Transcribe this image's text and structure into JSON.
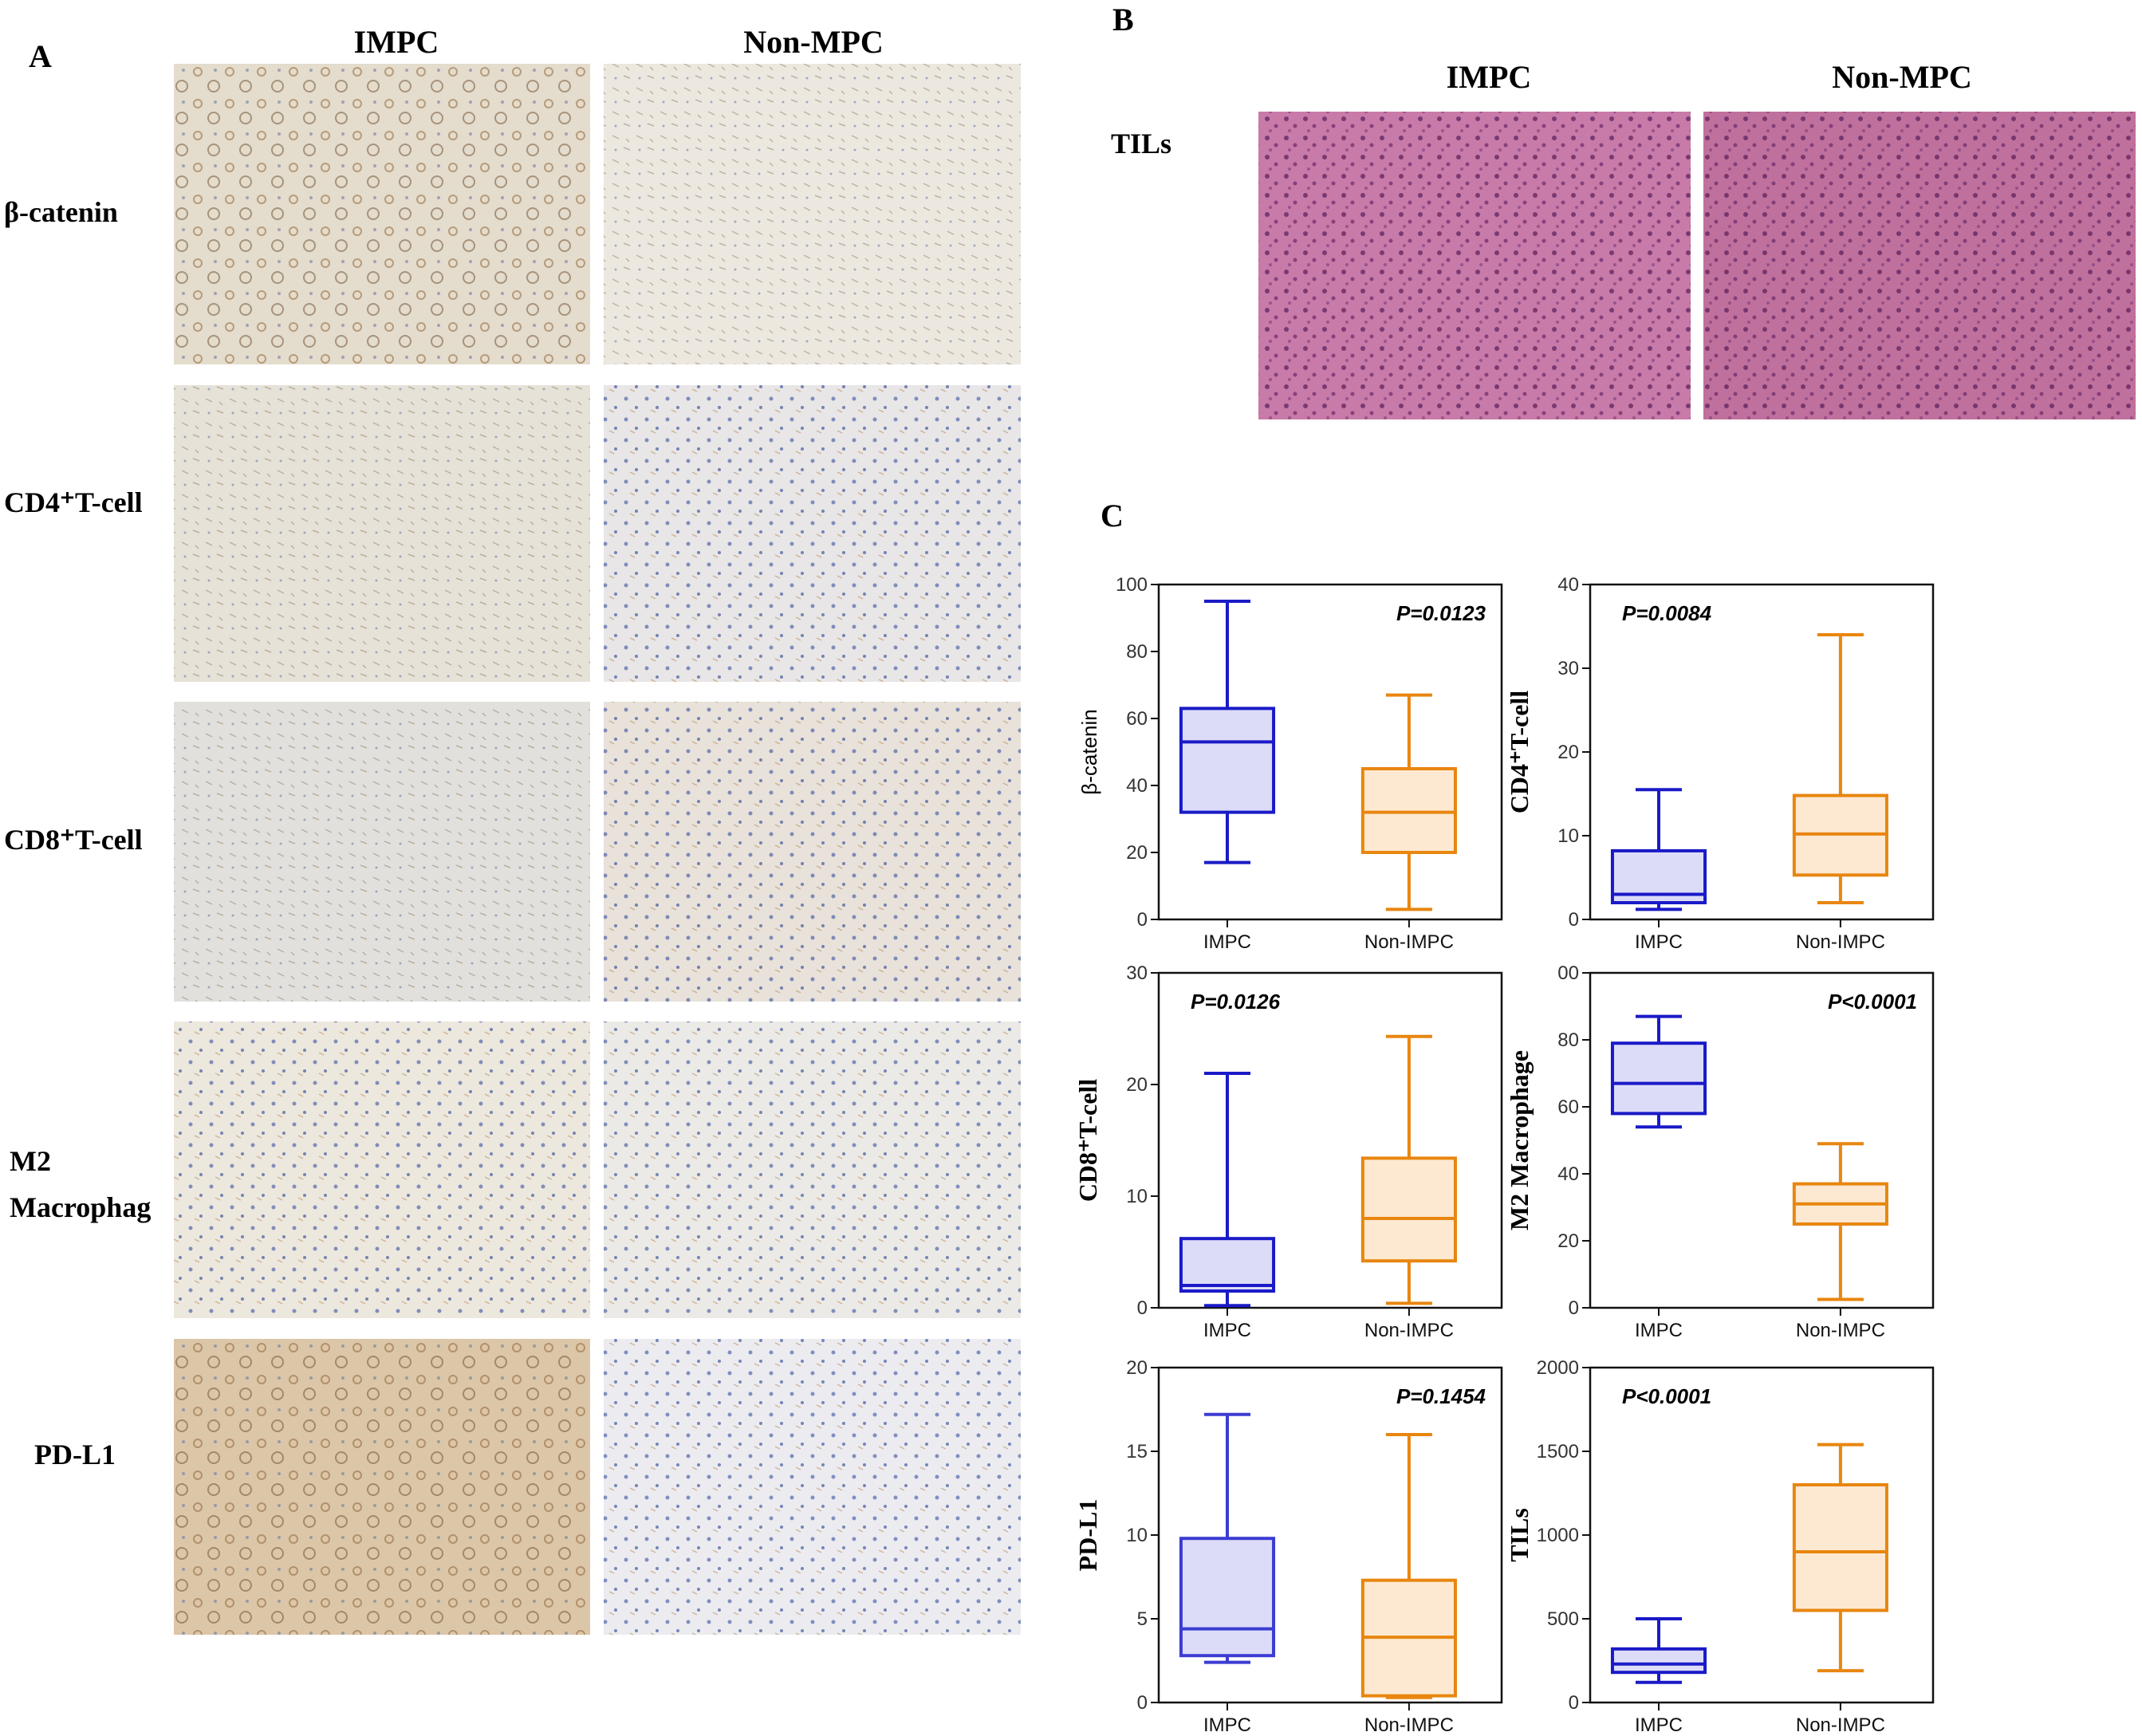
{
  "panel_a": {
    "label": "A",
    "columns": [
      "IMPC",
      "Non-MPC"
    ],
    "rows": [
      [
        "β-catenin"
      ],
      [
        "CD4⁺T-cell"
      ],
      [
        "CD8⁺T-cell"
      ],
      [
        "M2",
        "Macrophag"
      ],
      [
        "PD-L1"
      ]
    ]
  },
  "panel_b": {
    "label": "B",
    "columns": [
      "IMPC",
      "Non-MPC"
    ],
    "rows": [
      "TILs"
    ]
  },
  "panel_c": {
    "label": "C"
  },
  "chart_data": [
    {
      "type": "box",
      "ylabel": "β-catenin",
      "ylabel_font": "sans",
      "annotation": "P=0.0123",
      "annotation_corner": "top-right",
      "categories": [
        "IMPC",
        "Non-IMPC"
      ],
      "colors": [
        "#1a1ac8",
        "#e8860f"
      ],
      "fills": [
        "#dcdcf8",
        "#fde9d2"
      ],
      "values": [
        {
          "min": 17,
          "q1": 32,
          "median": 53,
          "q3": 63,
          "max": 95
        },
        {
          "min": 3,
          "q1": 20,
          "median": 32,
          "q3": 45,
          "max": 67
        }
      ],
      "ylim": [
        0,
        100
      ],
      "yticks": [
        0,
        20,
        40,
        60,
        80,
        100
      ]
    },
    {
      "type": "box",
      "ylabel": "CD4⁺T-cell",
      "ylabel_font": "serif",
      "annotation": "P=0.0084",
      "annotation_corner": "top-left",
      "categories": [
        "IMPC",
        "Non-IMPC"
      ],
      "colors": [
        "#1a1ac8",
        "#e8860f"
      ],
      "fills": [
        "#dcdcf8",
        "#fde9d2"
      ],
      "values": [
        {
          "min": 1.2,
          "q1": 2,
          "median": 3,
          "q3": 8.2,
          "max": 15.5
        },
        {
          "min": 2,
          "q1": 5.3,
          "median": 10.2,
          "q3": 14.8,
          "max": 34
        }
      ],
      "ylim": [
        0,
        40
      ],
      "yticks": [
        0,
        10,
        20,
        30,
        40
      ]
    },
    {
      "type": "box",
      "ylabel": "CD8⁺T-cell",
      "ylabel_font": "serif",
      "annotation": "P=0.0126",
      "annotation_corner": "top-left",
      "categories": [
        "IMPC",
        "Non-IMPC"
      ],
      "colors": [
        "#1a1ac8",
        "#e8860f"
      ],
      "fills": [
        "#dcdcf8",
        "#fde9d2"
      ],
      "values": [
        {
          "min": 0.2,
          "q1": 1.5,
          "median": 2,
          "q3": 6.2,
          "max": 21
        },
        {
          "min": 0.4,
          "q1": 4.2,
          "median": 8,
          "q3": 13.4,
          "max": 24.3
        }
      ],
      "ylim": [
        0,
        30
      ],
      "yticks": [
        0,
        10,
        20,
        30
      ]
    },
    {
      "type": "box",
      "ylabel": "M2 Macrophage",
      "ylabel_font": "serif",
      "annotation": "P<0.0001",
      "annotation_corner": "top-right",
      "categories": [
        "IMPC",
        "Non-IMPC"
      ],
      "colors": [
        "#1a1ac8",
        "#e8860f"
      ],
      "fills": [
        "#dcdcf8",
        "#fde9d2"
      ],
      "values": [
        {
          "min": 54,
          "q1": 58,
          "median": 67,
          "q3": 79,
          "max": 87
        },
        {
          "min": 2.5,
          "q1": 25,
          "median": 31,
          "q3": 37,
          "max": 49
        }
      ],
      "ylim": [
        0,
        100
      ],
      "yticks": [
        0,
        20,
        40,
        60,
        80,
        {
          "value": 100,
          "label": "00"
        }
      ]
    },
    {
      "type": "box",
      "ylabel": "PD-L1",
      "ylabel_font": "serif",
      "annotation": "P=0.1454",
      "annotation_corner": "top-right",
      "categories": [
        "IMPC",
        "Non-IMPC"
      ],
      "colors": [
        "#3c3cd2",
        "#e8860f"
      ],
      "fills": [
        "#dcdcf8",
        "#fde9d2"
      ],
      "values": [
        {
          "min": 2.4,
          "q1": 2.8,
          "median": 4.4,
          "q3": 9.8,
          "max": 17.2
        },
        {
          "min": 0.3,
          "q1": 0.4,
          "median": 3.9,
          "q3": 7.3,
          "max": 16
        }
      ],
      "ylim": [
        0,
        20
      ],
      "yticks": [
        0,
        5,
        10,
        15,
        20
      ]
    },
    {
      "type": "box",
      "ylabel": "TILs",
      "ylabel_font": "serif",
      "annotation": "P<0.0001",
      "annotation_corner": "top-left",
      "categories": [
        "IMPC",
        "Non-IMPC"
      ],
      "colors": [
        "#1a1ac8",
        "#e8860f"
      ],
      "fills": [
        "#dcdcf8",
        "#fde9d2"
      ],
      "values": [
        {
          "min": 120,
          "q1": 180,
          "median": 230,
          "q3": 320,
          "max": 500
        },
        {
          "min": 190,
          "q1": 550,
          "median": 900,
          "q3": 1300,
          "max": 1540
        }
      ],
      "ylim": [
        0,
        2000
      ],
      "yticks": [
        0,
        500,
        1000,
        1500,
        2000
      ]
    }
  ]
}
